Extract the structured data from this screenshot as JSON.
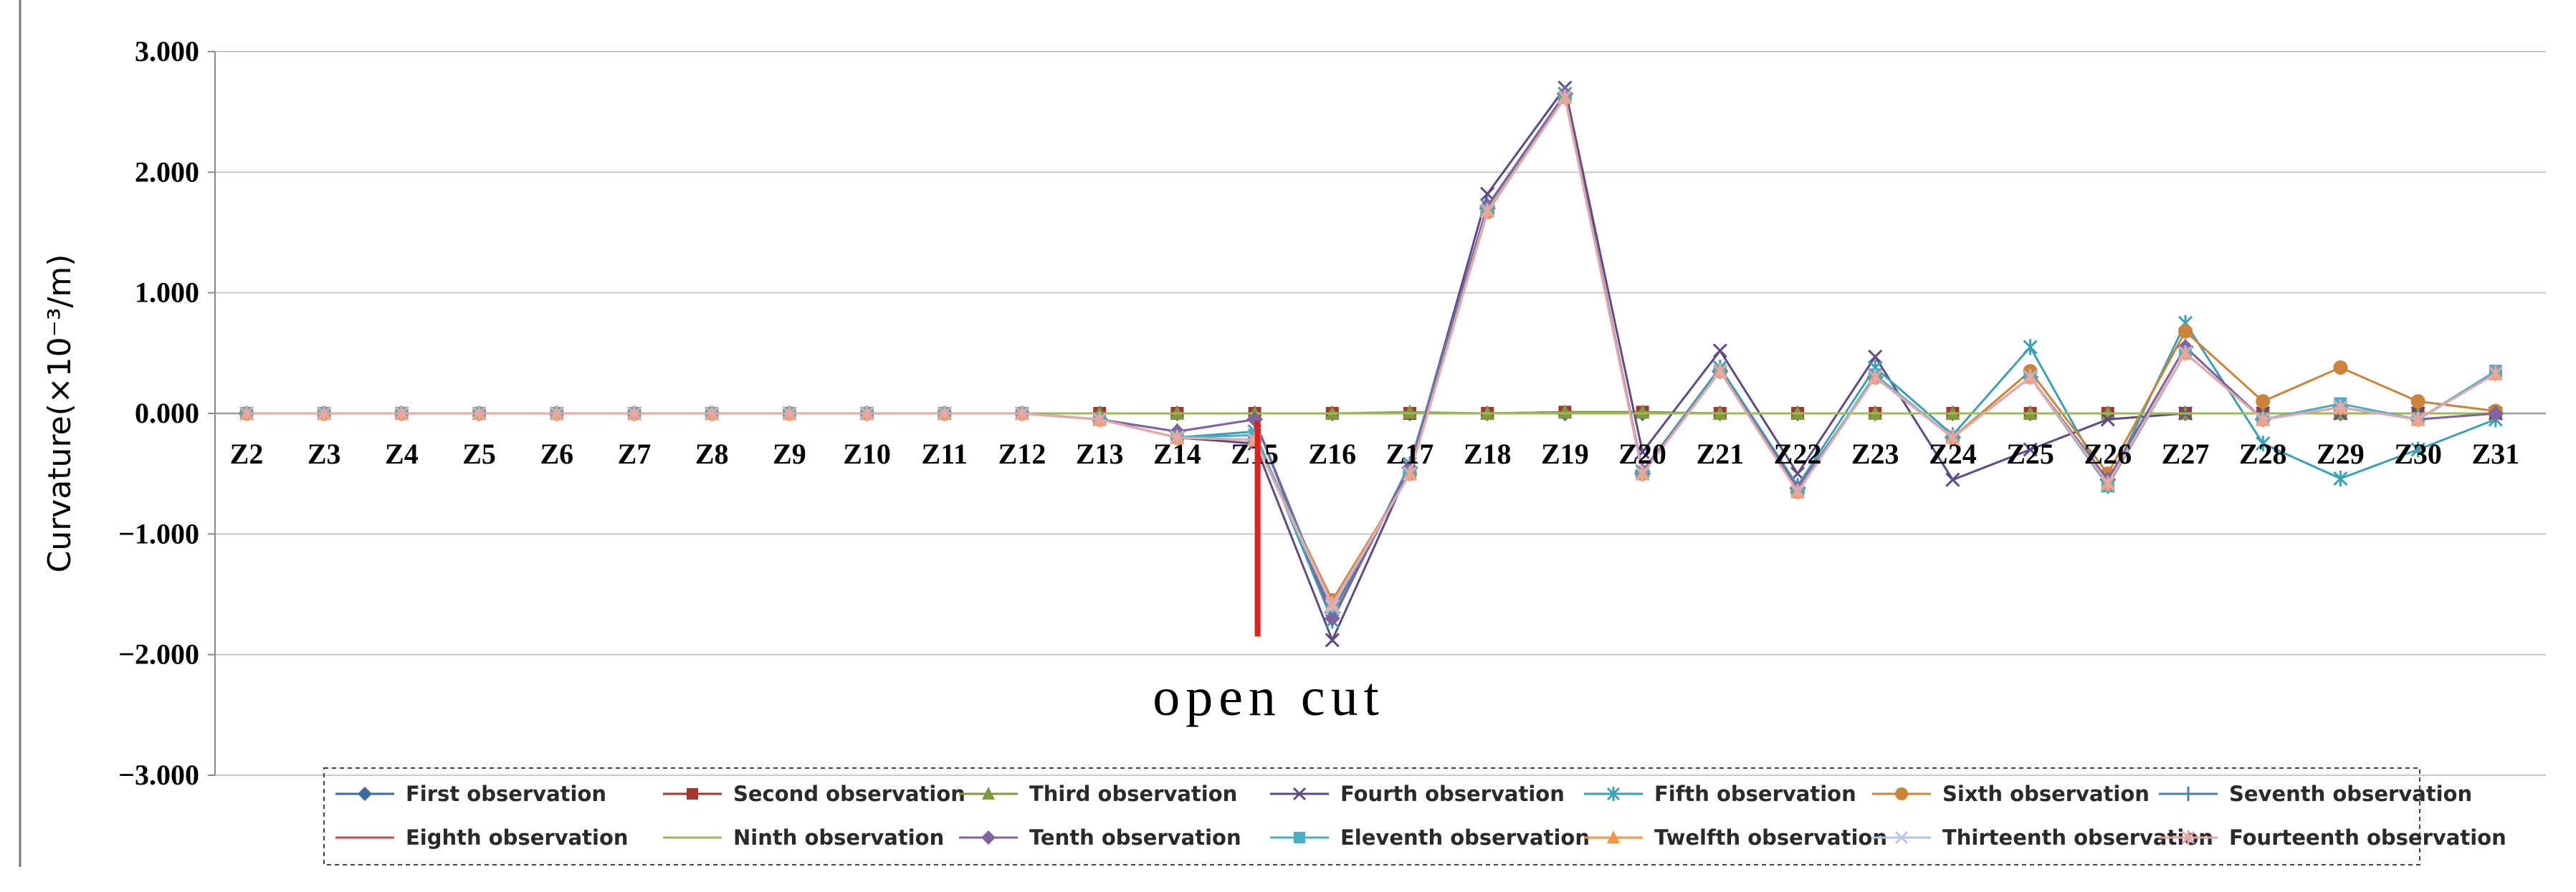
{
  "chart_data": {
    "type": "line",
    "title": "",
    "ylabel": "Curvature(×10⁻³/m)",
    "xlabel": "",
    "ylim": [
      -3,
      3
    ],
    "yticks": [
      3,
      2,
      1,
      0,
      -1,
      -2,
      -3
    ],
    "ytick_labels": [
      "3.000",
      "2.000",
      "1.000",
      "0.000",
      "−1.000",
      "−2.000",
      "−3.000"
    ],
    "grid": "horizontal",
    "legend_position": "bottom",
    "categories": [
      "Z2",
      "Z3",
      "Z4",
      "Z5",
      "Z6",
      "Z7",
      "Z8",
      "Z9",
      "Z10",
      "Z11",
      "Z12",
      "Z13",
      "Z14",
      "Z15",
      "Z16",
      "Z17",
      "Z18",
      "Z19",
      "Z20",
      "Z21",
      "Z22",
      "Z23",
      "Z24",
      "Z25",
      "Z26",
      "Z27",
      "Z28",
      "Z29",
      "Z30",
      "Z31"
    ],
    "annotation": {
      "text": "open cut",
      "at_category": "Z15",
      "from": 0.0,
      "to": -1.85,
      "color": "#e0201c"
    },
    "series": [
      {
        "name": "First observation",
        "color": "#3b6aa0",
        "marker": "diamond",
        "values": [
          0,
          0,
          0,
          0,
          0,
          0,
          0,
          0,
          0,
          0,
          0,
          0,
          0,
          0,
          0,
          0,
          0,
          0,
          0,
          0,
          0,
          0,
          0,
          0,
          0,
          0,
          0,
          0,
          0,
          0
        ]
      },
      {
        "name": "Second observation",
        "color": "#a3362f",
        "marker": "square",
        "values": [
          0,
          0,
          0,
          0,
          0,
          0,
          0,
          0,
          0,
          0,
          0,
          0,
          0,
          0,
          0,
          0,
          0,
          0.01,
          0.01,
          0,
          0,
          0,
          0,
          0,
          0,
          0,
          0,
          0,
          0,
          0
        ]
      },
      {
        "name": "Third observation",
        "color": "#7f9a3c",
        "marker": "triangle",
        "values": [
          0,
          0,
          0,
          0,
          0,
          0,
          0,
          0,
          0,
          0,
          0,
          0,
          0,
          0,
          0,
          0.01,
          0,
          0.01,
          0.01,
          0,
          0,
          0,
          0,
          0,
          0,
          0,
          0,
          0,
          0,
          0
        ]
      },
      {
        "name": "Fourth observation",
        "color": "#5e4a86",
        "marker": "x",
        "values": [
          0,
          0,
          0,
          0,
          0,
          0,
          0,
          0,
          0,
          0,
          0,
          -0.05,
          -0.2,
          -0.25,
          -1.88,
          -0.45,
          1.82,
          2.7,
          -0.32,
          0.52,
          -0.5,
          0.47,
          -0.55,
          -0.3,
          -0.05,
          0.0,
          0.0,
          0.0,
          0.0,
          0.0
        ]
      },
      {
        "name": "Fifth observation",
        "color": "#3aa0b3",
        "marker": "asterisk",
        "values": [
          0,
          0,
          0,
          0,
          0,
          0,
          0,
          0,
          0,
          0,
          0,
          -0.05,
          -0.2,
          -0.15,
          -1.72,
          -0.42,
          1.72,
          2.65,
          -0.48,
          0.38,
          -0.6,
          0.38,
          -0.18,
          0.55,
          -0.6,
          0.75,
          -0.25,
          -0.54,
          -0.3,
          -0.05
        ]
      },
      {
        "name": "Sixth observation",
        "color": "#cc8438",
        "marker": "circle",
        "values": [
          0,
          0,
          0,
          0,
          0,
          0,
          0,
          0,
          0,
          0,
          0,
          -0.05,
          -0.2,
          -0.22,
          -1.55,
          -0.5,
          1.67,
          2.63,
          -0.5,
          0.35,
          -0.65,
          0.3,
          -0.2,
          0.35,
          -0.5,
          0.68,
          0.1,
          0.38,
          0.1,
          0.02
        ]
      },
      {
        "name": "Seventh observation",
        "color": "#4a7fa8",
        "marker": "plus",
        "values": [
          0,
          0,
          0,
          0,
          0,
          0,
          0,
          0,
          0,
          0,
          0,
          -0.05,
          -0.15,
          -0.05,
          -1.65,
          -0.45,
          1.7,
          2.65,
          -0.5,
          0.35,
          -0.62,
          0.3,
          -0.2,
          0.3,
          -0.55,
          0.55,
          -0.05,
          0.05,
          -0.05,
          0.0
        ]
      },
      {
        "name": "Eighth observation",
        "color": "#c0504d",
        "marker": "dash",
        "values": [
          0,
          0,
          0,
          0,
          0,
          0,
          0,
          0,
          0,
          0,
          0,
          0,
          0,
          0,
          0,
          0,
          0,
          0,
          0,
          0,
          0,
          0,
          0,
          0,
          0,
          0,
          0,
          0,
          0,
          0
        ]
      },
      {
        "name": "Ninth observation",
        "color": "#9bbb59",
        "marker": "dash",
        "values": [
          0,
          0,
          0,
          0,
          0,
          0,
          0,
          0,
          0,
          0,
          0,
          0,
          0,
          0,
          0,
          0,
          0,
          0,
          0,
          0,
          0,
          0,
          0,
          0,
          0,
          0,
          0,
          0,
          0,
          0
        ]
      },
      {
        "name": "Tenth observation",
        "color": "#8064a2",
        "marker": "diamond",
        "values": [
          0,
          0,
          0,
          0,
          0,
          0,
          0,
          0,
          0,
          0,
          0,
          -0.05,
          -0.15,
          -0.05,
          -1.7,
          -0.45,
          1.72,
          2.65,
          -0.48,
          0.35,
          -0.62,
          0.3,
          -0.2,
          0.3,
          -0.55,
          0.55,
          -0.05,
          0.05,
          -0.05,
          0.0
        ]
      },
      {
        "name": "Eleventh observation",
        "color": "#4bacc6",
        "marker": "square",
        "values": [
          0,
          0,
          0,
          0,
          0,
          0,
          0,
          0,
          0,
          0,
          0,
          -0.05,
          -0.2,
          -0.18,
          -1.6,
          -0.5,
          1.68,
          2.62,
          -0.5,
          0.35,
          -0.65,
          0.32,
          -0.2,
          0.3,
          -0.6,
          0.5,
          -0.05,
          0.08,
          -0.05,
          0.35
        ]
      },
      {
        "name": "Twelfth observation",
        "color": "#f79646",
        "marker": "triangle",
        "values": [
          0,
          0,
          0,
          0,
          0,
          0,
          0,
          0,
          0,
          0,
          0,
          -0.05,
          -0.2,
          -0.22,
          -1.58,
          -0.5,
          1.68,
          2.62,
          -0.5,
          0.35,
          -0.65,
          0.3,
          -0.2,
          0.3,
          -0.58,
          0.5,
          -0.05,
          0.05,
          -0.05,
          0.33
        ]
      },
      {
        "name": "Thirteenth observation",
        "color": "#b7c6e0",
        "marker": "x",
        "values": [
          0,
          0,
          0,
          0,
          0,
          0,
          0,
          0,
          0,
          0,
          0,
          -0.05,
          -0.2,
          -0.22,
          -1.6,
          -0.5,
          1.68,
          2.62,
          -0.5,
          0.35,
          -0.65,
          0.3,
          -0.2,
          0.3,
          -0.58,
          0.5,
          -0.05,
          0.05,
          -0.05,
          0.33
        ]
      },
      {
        "name": "Fourteenth observation",
        "color": "#e5a8a8",
        "marker": "asterisk",
        "values": [
          0,
          0,
          0,
          0,
          0,
          0,
          0,
          0,
          0,
          0,
          0,
          -0.05,
          -0.2,
          -0.22,
          -1.58,
          -0.5,
          1.68,
          2.62,
          -0.5,
          0.35,
          -0.65,
          0.3,
          -0.2,
          0.3,
          -0.58,
          0.5,
          -0.05,
          0.05,
          -0.05,
          0.33
        ]
      }
    ]
  }
}
